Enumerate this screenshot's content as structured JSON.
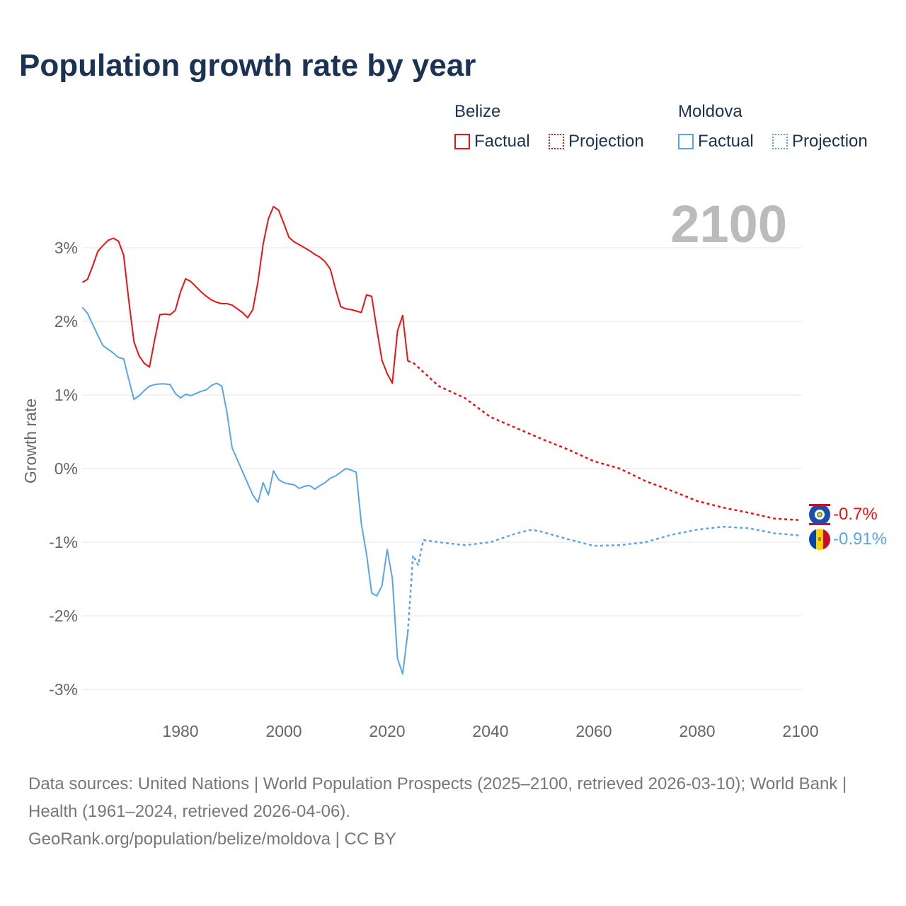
{
  "title": "Population growth rate by year",
  "legend": {
    "groups": [
      {
        "name": "Belize",
        "color": "#ee1111",
        "factual": "Factual",
        "projection": "Projection"
      },
      {
        "name": "Moldova",
        "color": "#5aa5ea",
        "factual": "Factual",
        "projection": "Projection"
      }
    ]
  },
  "year_label": "2100",
  "end_labels": {
    "belize": "-0.7%",
    "moldova": "-0.91%"
  },
  "footer": {
    "sources": "Data sources: United Nations | World Population Prospects (2025–2100, retrieved 2026-03-10); World Bank | Health (1961–2024, retrieved 2026-04-06).",
    "credit": "GeoRank.org/population/belize/moldova | CC BY"
  },
  "chart_data": {
    "type": "line",
    "title": "Population growth rate by year",
    "xlabel": "",
    "ylabel": "Growth rate",
    "xlim": [
      1961,
      2100
    ],
    "ylim": [
      -3,
      3.5
    ],
    "xticks": [
      "1980",
      "2000",
      "2020",
      "2040",
      "2060",
      "2080",
      "2100"
    ],
    "yticks": [
      "3%",
      "2%",
      "1%",
      "0%",
      "-1%",
      "-2%",
      "-3%"
    ],
    "ytick_values": [
      3,
      2,
      1,
      0,
      -1,
      -2,
      -3
    ],
    "xtick_values": [
      1980,
      2000,
      2020,
      2040,
      2060,
      2080,
      2100
    ],
    "grid": true,
    "series": [
      {
        "name": "Belize Factual",
        "color": "#ee1111",
        "style": "solid",
        "x": [
          1961,
          1962,
          1963,
          1964,
          1965,
          1966,
          1967,
          1968,
          1969,
          1970,
          1971,
          1972,
          1973,
          1974,
          1975,
          1976,
          1977,
          1978,
          1979,
          1980,
          1981,
          1982,
          1983,
          1984,
          1985,
          1986,
          1987,
          1988,
          1989,
          1990,
          1991,
          1992,
          1993,
          1994,
          1995,
          1996,
          1997,
          1998,
          1999,
          2000,
          2001,
          2002,
          2003,
          2004,
          2005,
          2006,
          2007,
          2008,
          2009,
          2010,
          2011,
          2012,
          2013,
          2014,
          2015,
          2016,
          2017,
          2018,
          2019,
          2020,
          2021,
          2022,
          2023,
          2024
        ],
        "y": [
          2.53,
          2.57,
          2.75,
          2.95,
          3.03,
          3.1,
          3.13,
          3.09,
          2.9,
          2.28,
          1.72,
          1.53,
          1.43,
          1.38,
          1.75,
          2.09,
          2.1,
          2.09,
          2.15,
          2.4,
          2.58,
          2.54,
          2.47,
          2.4,
          2.34,
          2.29,
          2.26,
          2.24,
          2.24,
          2.22,
          2.17,
          2.12,
          2.05,
          2.16,
          2.54,
          3.05,
          3.39,
          3.56,
          3.51,
          3.33,
          3.14,
          3.08,
          3.04,
          3.0,
          2.96,
          2.91,
          2.87,
          2.81,
          2.71,
          2.44,
          2.2,
          2.17,
          2.16,
          2.14,
          2.12,
          2.36,
          2.34,
          1.89,
          1.47,
          1.29,
          1.16,
          1.87,
          2.08,
          1.46
        ]
      },
      {
        "name": "Belize Projection",
        "color": "#ee1111",
        "style": "dotted",
        "x": [
          2024,
          2025,
          2030,
          2035,
          2040,
          2045,
          2050,
          2055,
          2060,
          2065,
          2070,
          2075,
          2080,
          2085,
          2090,
          2095,
          2100
        ],
        "y": [
          1.46,
          1.44,
          1.12,
          0.96,
          0.7,
          0.55,
          0.4,
          0.26,
          0.1,
          0.0,
          -0.17,
          -0.3,
          -0.44,
          -0.53,
          -0.6,
          -0.68,
          -0.7
        ]
      },
      {
        "name": "Moldova Factual",
        "color": "#5aa5ea",
        "style": "solid",
        "x": [
          1961,
          1962,
          1963,
          1964,
          1965,
          1966,
          1967,
          1968,
          1969,
          1970,
          1971,
          1972,
          1973,
          1974,
          1975,
          1976,
          1977,
          1978,
          1979,
          1980,
          1981,
          1982,
          1983,
          1984,
          1985,
          1986,
          1987,
          1988,
          1989,
          1990,
          1991,
          1992,
          1993,
          1994,
          1995,
          1996,
          1997,
          1998,
          1999,
          2000,
          2001,
          2002,
          2003,
          2004,
          2005,
          2006,
          2007,
          2008,
          2009,
          2010,
          2011,
          2012,
          2013,
          2014,
          2015,
          2016,
          2017,
          2018,
          2019,
          2020,
          2021,
          2022,
          2023,
          2024
        ],
        "y": [
          2.19,
          2.11,
          1.96,
          1.81,
          1.67,
          1.62,
          1.57,
          1.51,
          1.49,
          1.21,
          0.94,
          0.99,
          1.06,
          1.12,
          1.14,
          1.15,
          1.15,
          1.14,
          1.02,
          0.96,
          1.01,
          0.99,
          1.02,
          1.05,
          1.07,
          1.13,
          1.16,
          1.12,
          0.76,
          0.28,
          0.12,
          -0.04,
          -0.2,
          -0.36,
          -0.46,
          -0.19,
          -0.36,
          -0.03,
          -0.15,
          -0.19,
          -0.21,
          -0.22,
          -0.27,
          -0.24,
          -0.23,
          -0.28,
          -0.23,
          -0.19,
          -0.13,
          -0.1,
          -0.05,
          0.0,
          -0.02,
          -0.05,
          -0.75,
          -1.16,
          -1.69,
          -1.73,
          -1.59,
          -1.1,
          -1.49,
          -2.58,
          -2.79,
          -2.22
        ]
      },
      {
        "name": "Moldova Projection",
        "color": "#5aa5ea",
        "style": "dotted",
        "x": [
          2024,
          2025,
          2026,
          2027,
          2030,
          2035,
          2040,
          2045,
          2048,
          2050,
          2055,
          2060,
          2065,
          2070,
          2075,
          2080,
          2085,
          2090,
          2095,
          2100
        ],
        "y": [
          -2.22,
          -1.18,
          -1.31,
          -0.97,
          -1.0,
          -1.04,
          -1.0,
          -0.88,
          -0.83,
          -0.86,
          -0.96,
          -1.05,
          -1.04,
          -1.0,
          -0.9,
          -0.83,
          -0.79,
          -0.81,
          -0.88,
          -0.91
        ]
      }
    ]
  }
}
